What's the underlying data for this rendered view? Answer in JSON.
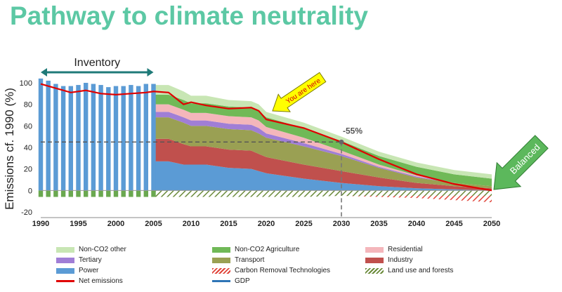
{
  "title": "Pathway to climate neutrality",
  "chart_data": {
    "type": "area",
    "ylabel": "Emissions cf. 1990 (%)",
    "xlim": [
      1990,
      2050
    ],
    "ylim": [
      -20,
      100
    ],
    "xticks": [
      1990,
      1995,
      2000,
      2005,
      2010,
      2015,
      2020,
      2025,
      2030,
      2035,
      2040,
      2045,
      2050
    ],
    "yticks": [
      -20,
      0,
      20,
      40,
      60,
      80,
      100
    ],
    "inventory": {
      "label": "Inventory",
      "years": [
        1990,
        1991,
        1992,
        1993,
        1994,
        1995,
        1996,
        1997,
        1998,
        1999,
        2000,
        2001,
        2002,
        2003,
        2004,
        2005
      ],
      "bar_values": [
        104,
        102,
        99,
        97,
        97,
        98,
        100,
        99,
        98,
        96,
        97,
        97,
        98,
        97,
        99,
        99
      ],
      "land_values": [
        -6,
        -6,
        -6,
        -6,
        -6,
        -6,
        -6,
        -6,
        -6,
        -6,
        -6,
        -6,
        -6,
        -6,
        -6,
        -6
      ]
    },
    "x": [
      2005,
      2007,
      2009,
      2010,
      2012,
      2015,
      2018,
      2019,
      2020,
      2025,
      2030,
      2035,
      2040,
      2045,
      2050
    ],
    "series": [
      {
        "name": "Power",
        "color": "#5b9bd5",
        "values": [
          27,
          27,
          24,
          24,
          24,
          21,
          20,
          18,
          16,
          11,
          7,
          4,
          2,
          1,
          0
        ]
      },
      {
        "name": "Industry",
        "color": "#c0504d",
        "values": [
          21,
          21,
          19,
          17,
          17,
          17,
          17,
          16,
          15,
          13,
          11,
          8,
          5,
          3,
          2
        ]
      },
      {
        "name": "Transport",
        "color": "#9aa053",
        "values": [
          20,
          20,
          20,
          19,
          19,
          19,
          19,
          19,
          18,
          17,
          14,
          9,
          5,
          3,
          2
        ]
      },
      {
        "name": "Tertiary",
        "color": "#a07ed6",
        "values": [
          5,
          5,
          5,
          5,
          5,
          5,
          5,
          5,
          4,
          3,
          2,
          1,
          1,
          0,
          0
        ]
      },
      {
        "name": "Residential",
        "color": "#f4b6bb",
        "values": [
          7,
          7,
          7,
          7,
          7,
          7,
          7,
          7,
          6,
          5,
          3,
          2,
          1,
          0,
          0
        ]
      },
      {
        "name": "Non-CO2 Agriculture",
        "color": "#70b957",
        "values": [
          9,
          9,
          9,
          9,
          9,
          9,
          9,
          9,
          9,
          9,
          9,
          8,
          8,
          8,
          7
        ]
      },
      {
        "name": "Non-CO2 other",
        "color": "#c8e6b4",
        "values": [
          9,
          9,
          8,
          7,
          7,
          6,
          6,
          6,
          5,
          5,
          4,
          4,
          4,
          4,
          4
        ]
      }
    ],
    "negative_series": [
      {
        "name": "Land use and forests",
        "color": "#6a8a3a",
        "values": [
          -6,
          -6,
          -6,
          -6,
          -6,
          -6,
          -6,
          -6,
          -6,
          -6,
          -5,
          -5,
          -5,
          -5,
          -5
        ]
      },
      {
        "name": "Carbon Removal Technologies",
        "color": "#e0443a",
        "values": [
          0,
          0,
          0,
          0,
          0,
          0,
          0,
          0,
          0,
          0,
          0,
          -1,
          -2,
          -4,
          -6
        ]
      }
    ],
    "net_emissions": {
      "name": "Net emissions",
      "color": "#e00000",
      "x": [
        1990,
        1992,
        1994,
        1996,
        1998,
        2000,
        2002,
        2004,
        2005,
        2007,
        2009,
        2010,
        2012,
        2015,
        2018,
        2019,
        2020,
        2025,
        2030,
        2035,
        2040,
        2045,
        2050
      ],
      "values": [
        99,
        95,
        91,
        93,
        90,
        89,
        90,
        91,
        92,
        91,
        80,
        82,
        79,
        76,
        77,
        74,
        66,
        58,
        45,
        29,
        15,
        6,
        0
      ]
    },
    "gdp": {
      "name": "GDP",
      "color": "#2e75b6"
    },
    "annotations": {
      "you_are_here": "You are here",
      "minus55": "-55%",
      "balanced": "Balanced"
    },
    "legend": [
      [
        "Non-CO2 other",
        "Non-CO2 Agriculture",
        "Residential"
      ],
      [
        "Tertiary",
        "Transport",
        "Industry"
      ],
      [
        "Power",
        "Carbon Removal Technologies",
        "Land use and forests"
      ],
      [
        "Net emissions",
        "GDP"
      ]
    ]
  }
}
